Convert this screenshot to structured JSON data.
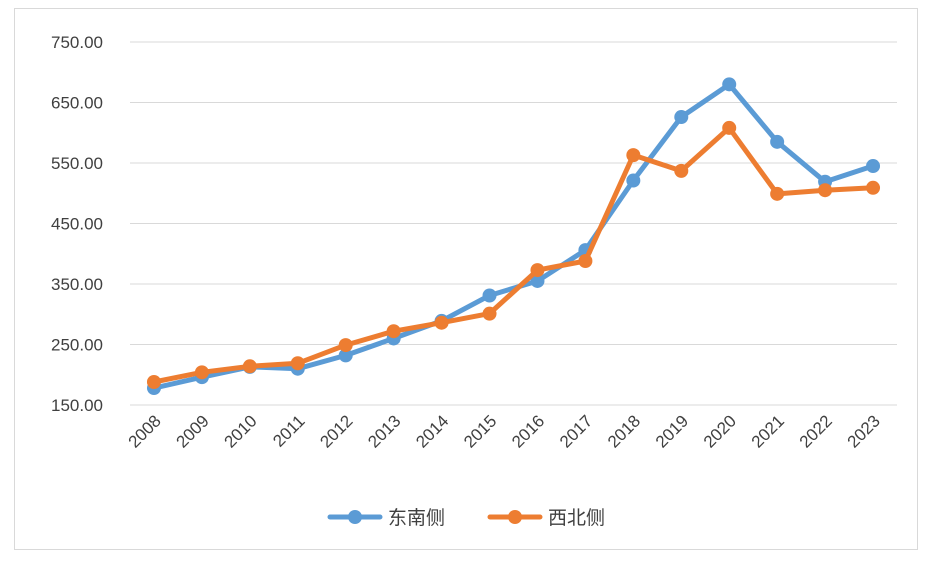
{
  "chart_data": {
    "type": "line",
    "title": "",
    "xlabel": "",
    "ylabel": "",
    "x": [
      "2008",
      "2009",
      "2010",
      "2011",
      "2012",
      "2013",
      "2014",
      "2015",
      "2016",
      "2017",
      "2018",
      "2019",
      "2020",
      "2021",
      "2022",
      "2023"
    ],
    "ylim": [
      150,
      750
    ],
    "yticks": [
      "150.00",
      "250.00",
      "350.00",
      "450.00",
      "550.00",
      "650.00",
      "750.00"
    ],
    "grid": true,
    "legend_position": "bottom",
    "series": [
      {
        "name": "东南侧",
        "color": "#5b9bd5",
        "values": [
          178,
          196,
          213,
          210,
          232,
          260,
          289,
          331,
          355,
          406,
          521,
          626,
          680,
          585,
          519,
          545
        ]
      },
      {
        "name": "西北侧",
        "color": "#ed7d31",
        "values": [
          188,
          204,
          214,
          219,
          249,
          272,
          286,
          301,
          373,
          388,
          563,
          537,
          608,
          499,
          505,
          509
        ]
      }
    ]
  }
}
